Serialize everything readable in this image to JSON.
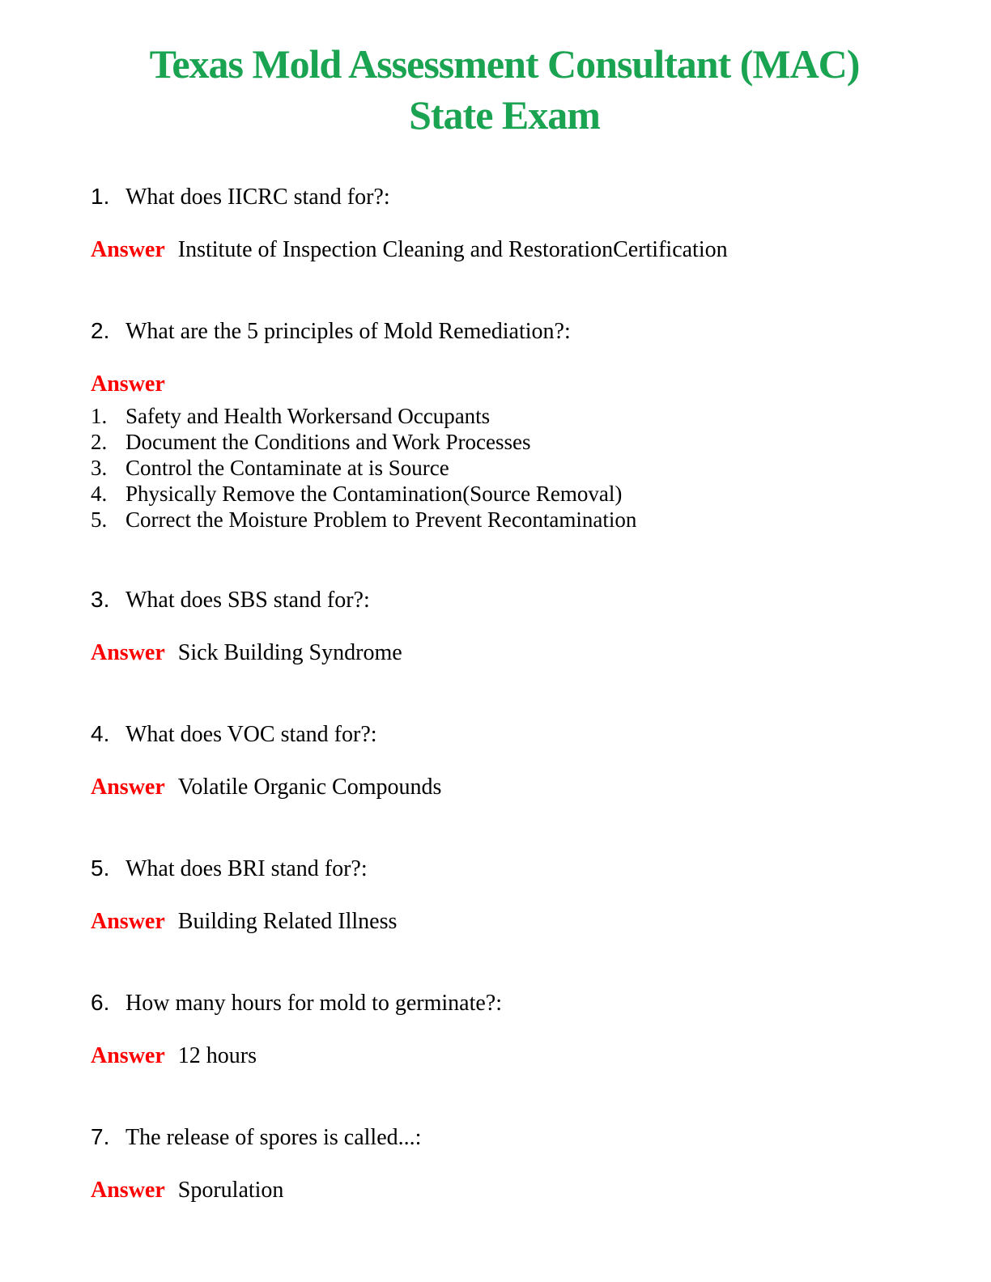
{
  "title": {
    "line1": "Texas Mold Assessment Consultant (MAC)",
    "line2": "State Exam"
  },
  "colors": {
    "title_green": "#1aa351",
    "answer_red": "#ff0000",
    "body_text": "#000000"
  },
  "answer_label": "Answer",
  "questions": [
    {
      "number": "1.",
      "question": "What does IICRC stand for?:",
      "answer": "Institute of Inspection Cleaning and RestorationCertification"
    },
    {
      "number": "2.",
      "question": "What are the 5 principles of Mold Remediation?:",
      "answer_list": [
        {
          "number": "1.",
          "text": "Safety and Health Workersand Occupants"
        },
        {
          "number": "2.",
          "text": "Document the Conditions and Work Processes"
        },
        {
          "number": "3.",
          "text": "Control the Contaminate at is Source"
        },
        {
          "number": "4.",
          "text": "Physically Remove the Contamination(Source Removal)"
        },
        {
          "number": "5.",
          "text": "Correct the Moisture Problem to Prevent Recontamination"
        }
      ]
    },
    {
      "number": "3.",
      "question": "What does SBS stand for?:",
      "answer": "Sick Building Syndrome"
    },
    {
      "number": "4.",
      "question": "What does VOC stand for?:",
      "answer": "Volatile Organic Compounds"
    },
    {
      "number": "5.",
      "question": "What does BRI stand for?:",
      "answer": "Building Related Illness"
    },
    {
      "number": "6.",
      "question": "How many hours for mold to germinate?:",
      "answer": "12 hours"
    },
    {
      "number": "7.",
      "question": "The release of spores is called...:",
      "answer": "Sporulation"
    }
  ]
}
